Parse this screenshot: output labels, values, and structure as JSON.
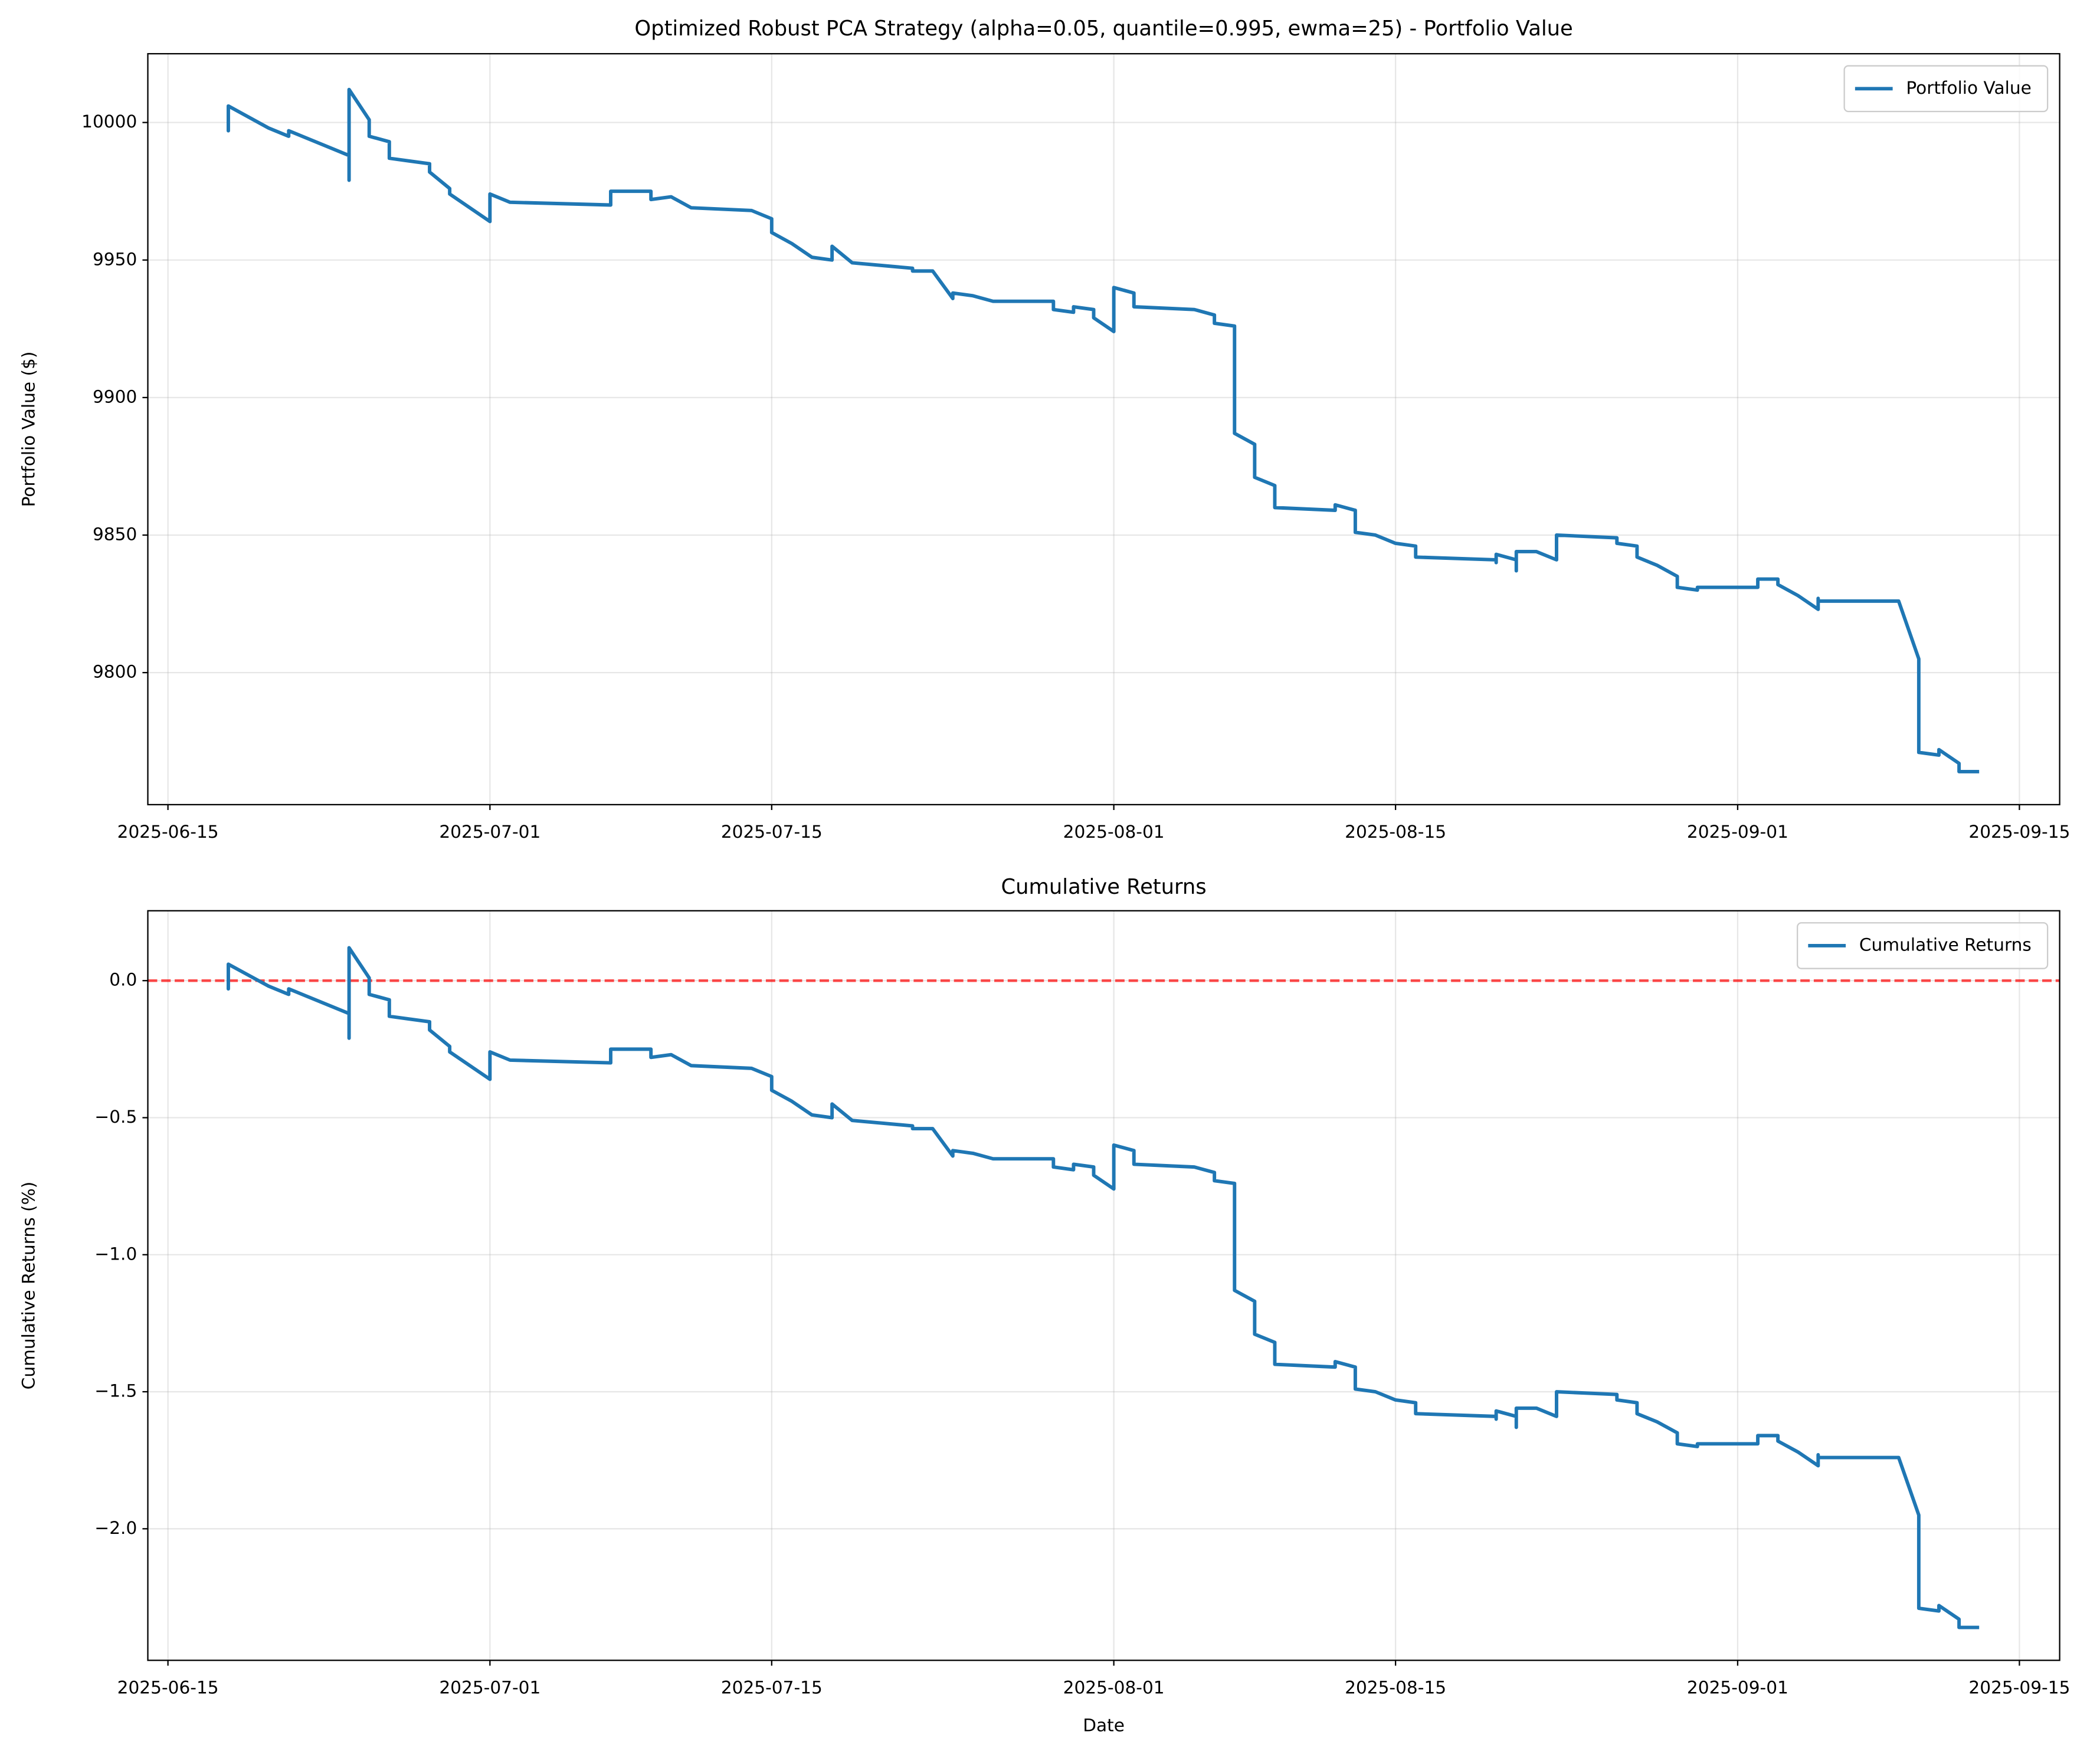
{
  "chart_data": [
    {
      "type": "line",
      "title": "Optimized Robust PCA Strategy (alpha=0.05, quantile=0.995, ewma=25) - Portfolio Value",
      "ylabel": "Portfolio Value ($)",
      "x": [
        "2025-06-18",
        "2025-06-18",
        "2025-06-18",
        "2025-06-20",
        "2025-06-21",
        "2025-06-21",
        "2025-06-24",
        "2025-06-24",
        "2025-06-24",
        "2025-06-25",
        "2025-06-25",
        "2025-06-26",
        "2025-06-26",
        "2025-06-27",
        "2025-06-28",
        "2025-06-28",
        "2025-06-29",
        "2025-06-29",
        "2025-07-01",
        "2025-07-01",
        "2025-07-02",
        "2025-07-07",
        "2025-07-07",
        "2025-07-09",
        "2025-07-09",
        "2025-07-10",
        "2025-07-11",
        "2025-07-14",
        "2025-07-15",
        "2025-07-15",
        "2025-07-16",
        "2025-07-17",
        "2025-07-18",
        "2025-07-18",
        "2025-07-19",
        "2025-07-22",
        "2025-07-22",
        "2025-07-23",
        "2025-07-24",
        "2025-07-24",
        "2025-07-25",
        "2025-07-26",
        "2025-07-29",
        "2025-07-29",
        "2025-07-30",
        "2025-07-30",
        "2025-07-31",
        "2025-07-31",
        "2025-08-01",
        "2025-08-01",
        "2025-08-02",
        "2025-08-02",
        "2025-08-05",
        "2025-08-06",
        "2025-08-06",
        "2025-08-07",
        "2025-08-07",
        "2025-08-07",
        "2025-08-08",
        "2025-08-08",
        "2025-08-09",
        "2025-08-09",
        "2025-08-12",
        "2025-08-12",
        "2025-08-13",
        "2025-08-13",
        "2025-08-14",
        "2025-08-15",
        "2025-08-16",
        "2025-08-16",
        "2025-08-20",
        "2025-08-20",
        "2025-08-20",
        "2025-08-21",
        "2025-08-21",
        "2025-08-21",
        "2025-08-22",
        "2025-08-23",
        "2025-08-23",
        "2025-08-26",
        "2025-08-26",
        "2025-08-27",
        "2025-08-27",
        "2025-08-28",
        "2025-08-29",
        "2025-08-29",
        "2025-08-30",
        "2025-08-30",
        "2025-09-02",
        "2025-09-02",
        "2025-09-03",
        "2025-09-03",
        "2025-09-04",
        "2025-09-05",
        "2025-09-05",
        "2025-09-05",
        "2025-09-09",
        "2025-09-10",
        "2025-09-10",
        "2025-09-11",
        "2025-09-11",
        "2025-09-12",
        "2025-09-12",
        "2025-09-13"
      ],
      "series": [
        {
          "name": "Portfolio Value",
          "color": "#1f77b4",
          "values": [
            10000,
            9997,
            10006,
            9998,
            9995,
            9997,
            9988,
            9979,
            10012,
            10001,
            9995,
            9993,
            9987,
            9986,
            9985,
            9982,
            9976,
            9974,
            9964,
            9974,
            9971,
            9970,
            9975,
            9975,
            9972,
            9973,
            9969,
            9968,
            9965,
            9960,
            9956,
            9951,
            9950,
            9955,
            9949,
            9947,
            9946,
            9946,
            9936,
            9938,
            9937,
            9935,
            9935,
            9932,
            9931,
            9933,
            9932,
            9929,
            9924,
            9940,
            9938,
            9933,
            9932,
            9930,
            9927,
            9926,
            9918,
            9887,
            9883,
            9871,
            9868,
            9860,
            9859,
            9861,
            9859,
            9851,
            9850,
            9847,
            9846,
            9842,
            9841,
            9840,
            9843,
            9841,
            9837,
            9844,
            9844,
            9841,
            9850,
            9849,
            9847,
            9846,
            9842,
            9839,
            9835,
            9831,
            9830,
            9831,
            9831,
            9834,
            9834,
            9832,
            9828,
            9823,
            9827,
            9826,
            9826,
            9805,
            9771,
            9770,
            9772,
            9767,
            9764,
            9764
          ]
        }
      ],
      "xlim": [
        "2025-06-14",
        "2025-09-17"
      ],
      "xticks": [
        "2025-06-15",
        "2025-07-01",
        "2025-07-15",
        "2025-08-01",
        "2025-08-15",
        "2025-09-01",
        "2025-09-15"
      ],
      "ylim": [
        9752,
        10025
      ],
      "yticks": [
        9800,
        9850,
        9900,
        9950,
        10000
      ],
      "grid": true,
      "legend": "upper right"
    },
    {
      "type": "line",
      "title": "Cumulative Returns",
      "xlabel": "Date",
      "ylabel": "Cumulative Returns (%)",
      "x": [
        "2025-06-18",
        "2025-06-18",
        "2025-06-18",
        "2025-06-20",
        "2025-06-21",
        "2025-06-21",
        "2025-06-24",
        "2025-06-24",
        "2025-06-24",
        "2025-06-25",
        "2025-06-25",
        "2025-06-26",
        "2025-06-26",
        "2025-06-27",
        "2025-06-28",
        "2025-06-28",
        "2025-06-29",
        "2025-06-29",
        "2025-07-01",
        "2025-07-01",
        "2025-07-02",
        "2025-07-07",
        "2025-07-07",
        "2025-07-09",
        "2025-07-09",
        "2025-07-10",
        "2025-07-11",
        "2025-07-14",
        "2025-07-15",
        "2025-07-15",
        "2025-07-16",
        "2025-07-17",
        "2025-07-18",
        "2025-07-18",
        "2025-07-19",
        "2025-07-22",
        "2025-07-22",
        "2025-07-23",
        "2025-07-24",
        "2025-07-24",
        "2025-07-25",
        "2025-07-26",
        "2025-07-29",
        "2025-07-29",
        "2025-07-30",
        "2025-07-30",
        "2025-07-31",
        "2025-07-31",
        "2025-08-01",
        "2025-08-01",
        "2025-08-02",
        "2025-08-02",
        "2025-08-05",
        "2025-08-06",
        "2025-08-06",
        "2025-08-07",
        "2025-08-07",
        "2025-08-07",
        "2025-08-08",
        "2025-08-08",
        "2025-08-09",
        "2025-08-09",
        "2025-08-12",
        "2025-08-12",
        "2025-08-13",
        "2025-08-13",
        "2025-08-14",
        "2025-08-15",
        "2025-08-16",
        "2025-08-16",
        "2025-08-20",
        "2025-08-20",
        "2025-08-20",
        "2025-08-21",
        "2025-08-21",
        "2025-08-21",
        "2025-08-22",
        "2025-08-23",
        "2025-08-23",
        "2025-08-26",
        "2025-08-26",
        "2025-08-27",
        "2025-08-27",
        "2025-08-28",
        "2025-08-29",
        "2025-08-29",
        "2025-08-30",
        "2025-08-30",
        "2025-09-02",
        "2025-09-02",
        "2025-09-03",
        "2025-09-03",
        "2025-09-04",
        "2025-09-05",
        "2025-09-05",
        "2025-09-05",
        "2025-09-09",
        "2025-09-10",
        "2025-09-10",
        "2025-09-11",
        "2025-09-11",
        "2025-09-12",
        "2025-09-12",
        "2025-09-13"
      ],
      "series": [
        {
          "name": "Cumulative Returns",
          "color": "#1f77b4",
          "values": [
            0,
            -0.03,
            0.06,
            -0.02,
            -0.05,
            -0.03,
            -0.12,
            -0.21,
            0.12,
            0.01,
            -0.05,
            -0.07,
            -0.13,
            -0.14,
            -0.15,
            -0.18,
            -0.24,
            -0.26,
            -0.36,
            -0.26,
            -0.29,
            -0.3,
            -0.25,
            -0.25,
            -0.28,
            -0.27,
            -0.31,
            -0.32,
            -0.35,
            -0.4,
            -0.44,
            -0.49,
            -0.5,
            -0.45,
            -0.51,
            -0.53,
            -0.54,
            -0.54,
            -0.64,
            -0.62,
            -0.63,
            -0.65,
            -0.65,
            -0.68,
            -0.69,
            -0.67,
            -0.68,
            -0.71,
            -0.76,
            -0.6,
            -0.62,
            -0.67,
            -0.68,
            -0.7,
            -0.73,
            -0.74,
            -0.82,
            -1.13,
            -1.17,
            -1.29,
            -1.32,
            -1.4,
            -1.41,
            -1.39,
            -1.41,
            -1.49,
            -1.5,
            -1.53,
            -1.54,
            -1.58,
            -1.59,
            -1.6,
            -1.57,
            -1.59,
            -1.63,
            -1.56,
            -1.56,
            -1.59,
            -1.5,
            -1.51,
            -1.53,
            -1.54,
            -1.58,
            -1.61,
            -1.65,
            -1.69,
            -1.7,
            -1.69,
            -1.69,
            -1.66,
            -1.66,
            -1.68,
            -1.72,
            -1.77,
            -1.73,
            -1.74,
            -1.74,
            -1.95,
            -2.29,
            -2.3,
            -2.28,
            -2.33,
            -2.36,
            -2.36
          ]
        }
      ],
      "xlim": [
        "2025-06-14",
        "2025-09-17"
      ],
      "xticks": [
        "2025-06-15",
        "2025-07-01",
        "2025-07-15",
        "2025-08-01",
        "2025-08-15",
        "2025-09-01",
        "2025-09-15"
      ],
      "ylim": [
        -2.48,
        0.255
      ],
      "yticks": [
        {
          "value": -2,
          "label": "−2.0"
        },
        {
          "value": -1.5,
          "label": "−1.5"
        },
        {
          "value": -1,
          "label": "−1.0"
        },
        {
          "value": -0.5,
          "label": "−0.5"
        },
        {
          "value": 0,
          "label": "0.0"
        }
      ],
      "reference_line": {
        "value": 0,
        "color": "#ff0000"
      },
      "grid": true,
      "legend": "upper right"
    }
  ]
}
